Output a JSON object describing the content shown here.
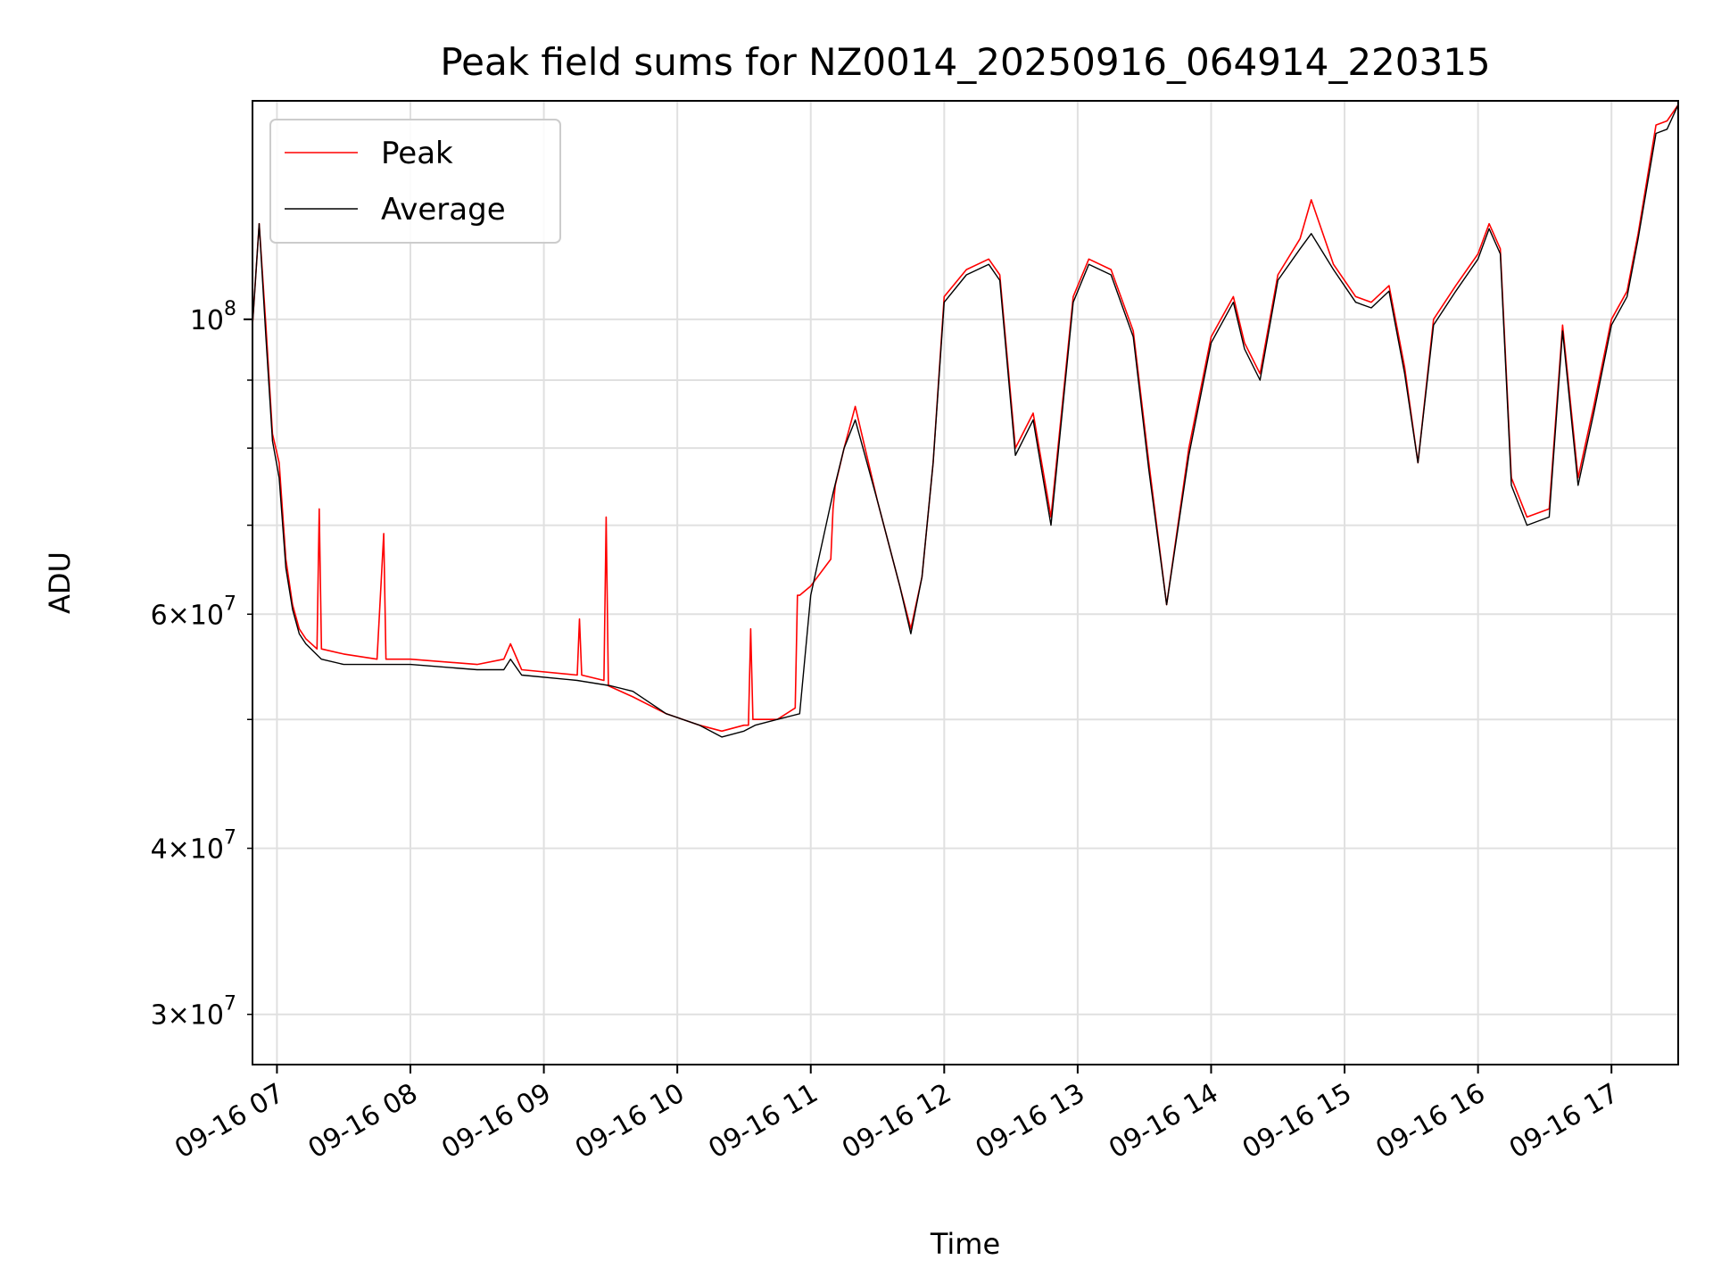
{
  "chart_data": {
    "type": "line",
    "title": "Peak field sums for NZ0014_20250916_064914_220315",
    "xlabel": "Time",
    "ylabel": "ADU",
    "y_scale": "log",
    "ylim": [
      27500000,
      146000000
    ],
    "xlim": [
      "09-16 06:49",
      "09-16 17:30"
    ],
    "grid": true,
    "legend_position": "upper left",
    "x_ticks": [
      "09-16 07",
      "09-16 08",
      "09-16 09",
      "09-16 10",
      "09-16 11",
      "09-16 12",
      "09-16 13",
      "09-16 14",
      "09-16 15",
      "09-16 16",
      "09-16 17"
    ],
    "y_major_ticks": [
      {
        "value": 100000000,
        "base": "10",
        "exp": "8",
        "mantissa": ""
      }
    ],
    "y_minor_ticks": [
      {
        "value": 30000000,
        "mantissa": "3",
        "base": "10",
        "exp": "7"
      },
      {
        "value": 40000000,
        "mantissa": "4",
        "base": "10",
        "exp": "7"
      },
      {
        "value": 50000000,
        "label": false
      },
      {
        "value": 60000000,
        "mantissa": "6",
        "base": "10",
        "exp": "7"
      },
      {
        "value": 70000000,
        "label": false
      },
      {
        "value": 80000000,
        "label": false
      },
      {
        "value": 90000000,
        "label": false
      },
      {
        "value": 200000000,
        "label": false
      }
    ],
    "series": [
      {
        "name": "Peak",
        "color": "#ff0000",
        "x": [
          "09-16 06:49",
          "09-16 06:52",
          "09-16 06:55",
          "09-16 06:58",
          "09-16 07:01",
          "09-16 07:04",
          "09-16 07:07",
          "09-16 07:10",
          "09-16 07:13",
          "09-16 07:18",
          "09-16 07:19",
          "09-16 07:20",
          "09-16 07:30",
          "09-16 07:45",
          "09-16 07:48",
          "09-16 07:49",
          "09-16 08:00",
          "09-16 08:30",
          "09-16 08:42",
          "09-16 08:45",
          "09-16 08:50",
          "09-16 09:15",
          "09-16 09:16",
          "09-16 09:17",
          "09-16 09:27",
          "09-16 09:28",
          "09-16 09:29",
          "09-16 09:40",
          "09-16 09:55",
          "09-16 10:10",
          "09-16 10:20",
          "09-16 10:30",
          "09-16 10:32",
          "09-16 10:33",
          "09-16 10:34",
          "09-16 10:45",
          "09-16 10:53",
          "09-16 10:54",
          "09-16 10:55",
          "09-16 11:00",
          "09-16 11:09",
          "09-16 11:10",
          "09-16 11:11",
          "09-16 11:15",
          "09-16 11:20",
          "09-16 11:30",
          "09-16 11:40",
          "09-16 11:45",
          "09-16 11:50",
          "09-16 11:55",
          "09-16 12:00",
          "09-16 12:10",
          "09-16 12:20",
          "09-16 12:25",
          "09-16 12:32",
          "09-16 12:40",
          "09-16 12:48",
          "09-16 12:58",
          "09-16 13:05",
          "09-16 13:15",
          "09-16 13:25",
          "09-16 13:32",
          "09-16 13:40",
          "09-16 13:50",
          "09-16 14:00",
          "09-16 14:10",
          "09-16 14:15",
          "09-16 14:22",
          "09-16 14:30",
          "09-16 14:40",
          "09-16 14:45",
          "09-16 14:55",
          "09-16 15:05",
          "09-16 15:12",
          "09-16 15:20",
          "09-16 15:27",
          "09-16 15:33",
          "09-16 15:40",
          "09-16 15:50",
          "09-16 16:00",
          "09-16 16:05",
          "09-16 16:10",
          "09-16 16:15",
          "09-16 16:22",
          "09-16 16:32",
          "09-16 16:38",
          "09-16 16:45",
          "09-16 16:52",
          "09-16 17:00",
          "09-16 17:07",
          "09-16 17:12",
          "09-16 17:20",
          "09-16 17:25",
          "09-16 17:30"
        ],
        "y": [
          99000000,
          118000000,
          99000000,
          82000000,
          78000000,
          66000000,
          61000000,
          58500000,
          57500000,
          56500000,
          72000000,
          56500000,
          56000000,
          55500000,
          69000000,
          55500000,
          55500000,
          55000000,
          55500000,
          57000000,
          54500000,
          54000000,
          59500000,
          54000000,
          53500000,
          71000000,
          53000000,
          52000000,
          50500000,
          49500000,
          49000000,
          49500000,
          49500000,
          58500000,
          50000000,
          50000000,
          51000000,
          62000000,
          62000000,
          63000000,
          66000000,
          72000000,
          75000000,
          80000000,
          86000000,
          73000000,
          63000000,
          58500000,
          64000000,
          78000000,
          104000000,
          109000000,
          111000000,
          108000000,
          80000000,
          85000000,
          71000000,
          104000000,
          111000000,
          109000000,
          98000000,
          78000000,
          61000000,
          80000000,
          97000000,
          104000000,
          96000000,
          91000000,
          108000000,
          115000000,
          123000000,
          110000000,
          104000000,
          103000000,
          106000000,
          92000000,
          78000000,
          100000000,
          106000000,
          112000000,
          118000000,
          113000000,
          76000000,
          71000000,
          72000000,
          99000000,
          76000000,
          86000000,
          100000000,
          105000000,
          116000000,
          140000000,
          141000000,
          145000000
        ]
      },
      {
        "name": "Average",
        "color": "#000000",
        "x": [
          "09-16 06:49",
          "09-16 06:52",
          "09-16 06:55",
          "09-16 06:58",
          "09-16 07:01",
          "09-16 07:04",
          "09-16 07:07",
          "09-16 07:10",
          "09-16 07:13",
          "09-16 07:20",
          "09-16 07:30",
          "09-16 07:45",
          "09-16 08:00",
          "09-16 08:30",
          "09-16 08:42",
          "09-16 08:45",
          "09-16 08:50",
          "09-16 09:15",
          "09-16 09:30",
          "09-16 09:40",
          "09-16 09:55",
          "09-16 10:10",
          "09-16 10:20",
          "09-16 10:30",
          "09-16 10:35",
          "09-16 10:45",
          "09-16 10:55",
          "09-16 11:00",
          "09-16 11:10",
          "09-16 11:15",
          "09-16 11:20",
          "09-16 11:30",
          "09-16 11:40",
          "09-16 11:45",
          "09-16 11:50",
          "09-16 11:55",
          "09-16 12:00",
          "09-16 12:10",
          "09-16 12:20",
          "09-16 12:25",
          "09-16 12:32",
          "09-16 12:40",
          "09-16 12:48",
          "09-16 12:58",
          "09-16 13:05",
          "09-16 13:15",
          "09-16 13:25",
          "09-16 13:32",
          "09-16 13:40",
          "09-16 13:50",
          "09-16 14:00",
          "09-16 14:10",
          "09-16 14:15",
          "09-16 14:22",
          "09-16 14:30",
          "09-16 14:40",
          "09-16 14:45",
          "09-16 14:55",
          "09-16 15:05",
          "09-16 15:12",
          "09-16 15:20",
          "09-16 15:27",
          "09-16 15:33",
          "09-16 15:40",
          "09-16 15:50",
          "09-16 16:00",
          "09-16 16:05",
          "09-16 16:10",
          "09-16 16:15",
          "09-16 16:22",
          "09-16 16:32",
          "09-16 16:38",
          "09-16 16:45",
          "09-16 16:52",
          "09-16 17:00",
          "09-16 17:07",
          "09-16 17:12",
          "09-16 17:20",
          "09-16 17:25",
          "09-16 17:30"
        ],
        "y": [
          99000000,
          118000000,
          97000000,
          81000000,
          76000000,
          65000000,
          60500000,
          58000000,
          57000000,
          55500000,
          55000000,
          55000000,
          55000000,
          54500000,
          54500000,
          55500000,
          54000000,
          53500000,
          53000000,
          52500000,
          50500000,
          49500000,
          48500000,
          49000000,
          49500000,
          50000000,
          50500000,
          62000000,
          74000000,
          80000000,
          84000000,
          73000000,
          63000000,
          58000000,
          64000000,
          78000000,
          103000000,
          108000000,
          110000000,
          107000000,
          79000000,
          84000000,
          70000000,
          103000000,
          110000000,
          108000000,
          97000000,
          77000000,
          61000000,
          79000000,
          96000000,
          103000000,
          95000000,
          90000000,
          107000000,
          113000000,
          116000000,
          109000000,
          103000000,
          102000000,
          105000000,
          91000000,
          78000000,
          99000000,
          105000000,
          111000000,
          117000000,
          112000000,
          75000000,
          70000000,
          71000000,
          98000000,
          75000000,
          85000000,
          99000000,
          104000000,
          115000000,
          138000000,
          139000000,
          145000000
        ]
      }
    ]
  }
}
